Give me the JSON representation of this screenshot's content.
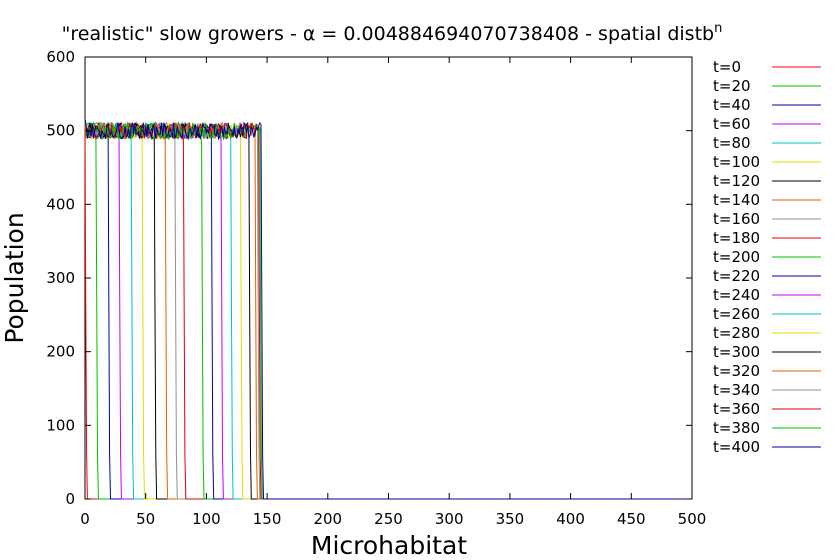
{
  "chart_data": {
    "type": "line",
    "title": "\"realistic\" slow growers - α = 0.004884694070738408 - spatial distb",
    "title_superscript": "n",
    "xlabel": "Microhabitat",
    "ylabel": "Population",
    "xlim": [
      0,
      500
    ],
    "ylim": [
      0,
      600
    ],
    "xticks": [
      "0",
      "50",
      "100",
      "150",
      "200",
      "250",
      "300",
      "350",
      "400",
      "450",
      "500"
    ],
    "yticks": [
      "0",
      "100",
      "200",
      "300",
      "400",
      "500",
      "600"
    ],
    "grid": false,
    "legend_position": "right-outside",
    "plateau": 500,
    "series": [
      {
        "name": "t=0",
        "color": "#ff0000",
        "front": 0
      },
      {
        "name": "t=20",
        "color": "#00c000",
        "front": 9
      },
      {
        "name": "t=40",
        "color": "#0000a0",
        "front": 19
      },
      {
        "name": "t=60",
        "color": "#c000ff",
        "front": 28
      },
      {
        "name": "t=80",
        "color": "#00c0c0",
        "front": 38
      },
      {
        "name": "t=100",
        "color": "#e0e000",
        "front": 47
      },
      {
        "name": "t=120",
        "color": "#000000",
        "front": 57
      },
      {
        "name": "t=140",
        "color": "#e06000",
        "front": 66
      },
      {
        "name": "t=160",
        "color": "#909090",
        "front": 74
      },
      {
        "name": "t=180",
        "color": "#e00000",
        "front": 81
      },
      {
        "name": "t=200",
        "color": "#00c000",
        "front": 96
      },
      {
        "name": "t=220",
        "color": "#0000a0",
        "front": 104
      },
      {
        "name": "t=240",
        "color": "#c000ff",
        "front": 112
      },
      {
        "name": "t=260",
        "color": "#00c0c0",
        "front": 120
      },
      {
        "name": "t=280",
        "color": "#e0e000",
        "front": 128
      },
      {
        "name": "t=300",
        "color": "#000000",
        "front": 135
      },
      {
        "name": "t=320",
        "color": "#e06000",
        "front": 140
      },
      {
        "name": "t=340",
        "color": "#909090",
        "front": 142
      },
      {
        "name": "t=360",
        "color": "#e00000",
        "front": 143
      },
      {
        "name": "t=380",
        "color": "#00c000",
        "front": 144
      },
      {
        "name": "t=400",
        "color": "#0000a0",
        "front": 145
      }
    ]
  }
}
